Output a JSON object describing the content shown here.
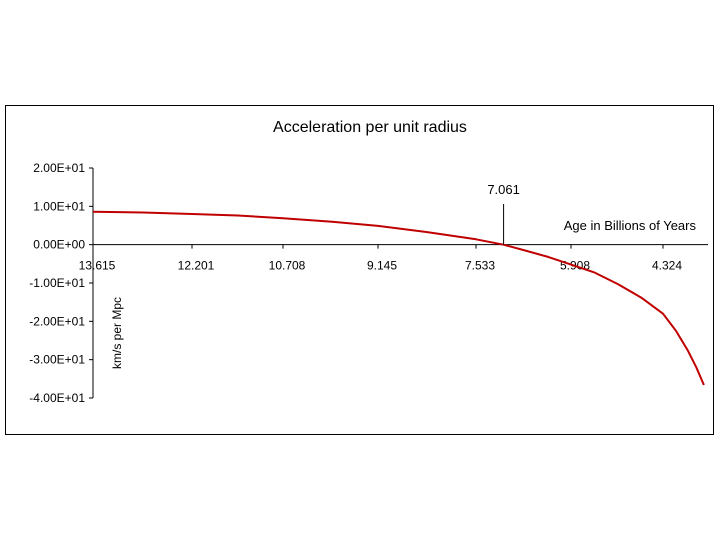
{
  "chart_data": {
    "type": "line",
    "title": "Acceleration per unit radius",
    "xlabel": "Age in Billions of Years",
    "ylabel": "km/s per Mpc",
    "x_ticks": [
      "13.615",
      "12.201",
      "10.708",
      "9.145",
      "7.533",
      "5.908",
      "4.324"
    ],
    "y_ticks": [
      "2.00E+01",
      "1.00E+01",
      "0.00E+00",
      "-1.00E+01",
      "-2.00E+01",
      "-3.00E+01",
      "-4.00E+01"
    ],
    "ylim": [
      -40,
      20
    ],
    "grid": false,
    "legend": "none",
    "annotation": {
      "label": "7.061",
      "x": 7.061
    },
    "series": [
      {
        "color": "#c00000",
        "points": [
          {
            "x": 13.615,
            "y": 8.6
          },
          {
            "x": 12.9,
            "y": 8.4
          },
          {
            "x": 12.201,
            "y": 8.0
          },
          {
            "x": 11.45,
            "y": 7.6
          },
          {
            "x": 10.708,
            "y": 6.9
          },
          {
            "x": 9.9,
            "y": 6.0
          },
          {
            "x": 9.145,
            "y": 4.9
          },
          {
            "x": 8.35,
            "y": 3.3
          },
          {
            "x": 7.533,
            "y": 1.4
          },
          {
            "x": 7.061,
            "y": 0.0
          },
          {
            "x": 6.7,
            "y": -1.5
          },
          {
            "x": 6.3,
            "y": -3.2
          },
          {
            "x": 5.908,
            "y": -5.2
          },
          {
            "x": 5.5,
            "y": -7.3
          },
          {
            "x": 5.1,
            "y": -10.3
          },
          {
            "x": 4.7,
            "y": -13.8
          },
          {
            "x": 4.324,
            "y": -18.0
          },
          {
            "x": 4.1,
            "y": -22.5
          },
          {
            "x": 3.9,
            "y": -27.5
          },
          {
            "x": 3.75,
            "y": -32.0
          },
          {
            "x": 3.62,
            "y": -36.6
          }
        ]
      }
    ]
  }
}
